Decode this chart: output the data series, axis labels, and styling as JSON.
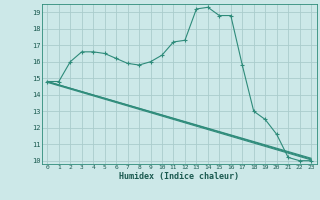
{
  "xlabel": "Humidex (Indice chaleur)",
  "background_color": "#cce8e8",
  "grid_color": "#aacccc",
  "line_color": "#2e8b7a",
  "xlim": [
    -0.5,
    23.5
  ],
  "ylim": [
    9.8,
    19.5
  ],
  "yticks": [
    10,
    11,
    12,
    13,
    14,
    15,
    16,
    17,
    18,
    19
  ],
  "xticks": [
    0,
    1,
    2,
    3,
    4,
    5,
    6,
    7,
    8,
    9,
    10,
    11,
    12,
    13,
    14,
    15,
    16,
    17,
    18,
    19,
    20,
    21,
    22,
    23
  ],
  "series": [
    {
      "x": [
        0,
        1,
        2,
        3,
        4,
        5,
        6,
        7,
        8,
        9,
        10,
        11,
        12,
        13,
        14,
        15,
        16,
        17,
        18,
        19,
        20,
        21,
        22,
        23
      ],
      "y": [
        14.8,
        14.8,
        16.0,
        16.6,
        16.6,
        16.5,
        16.2,
        15.9,
        15.8,
        16.0,
        16.4,
        17.2,
        17.3,
        19.2,
        19.3,
        18.8,
        18.8,
        15.8,
        13.0,
        12.5,
        11.6,
        10.2,
        10.0,
        10.0
      ],
      "marker": "+"
    },
    {
      "x": [
        0,
        23
      ],
      "y": [
        14.8,
        10.1
      ],
      "marker": null
    },
    {
      "x": [
        0,
        23
      ],
      "y": [
        14.8,
        10.15
      ],
      "marker": null
    },
    {
      "x": [
        0,
        23
      ],
      "y": [
        14.75,
        10.05
      ],
      "marker": null
    }
  ]
}
